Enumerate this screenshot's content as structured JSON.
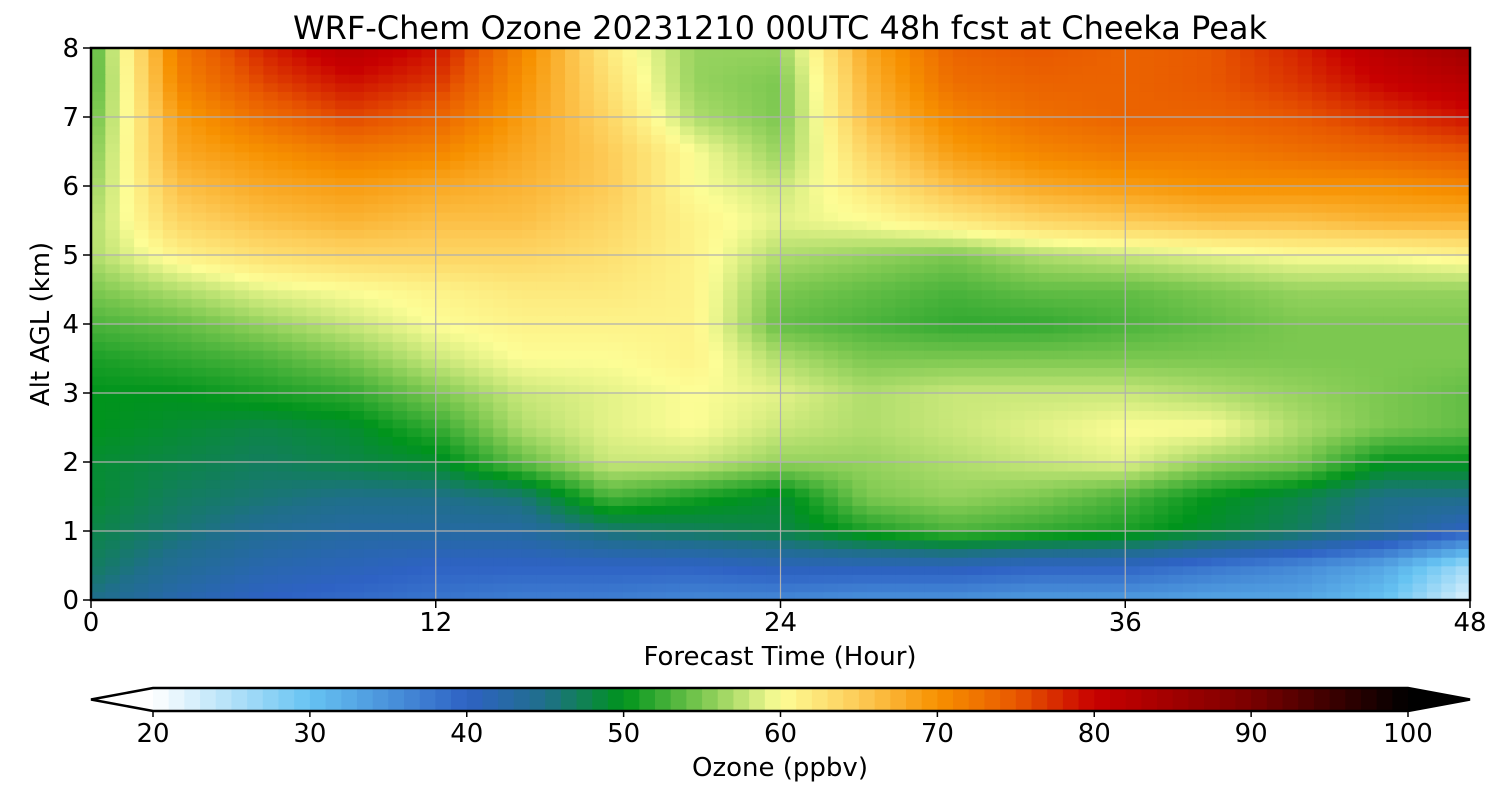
{
  "chart_data": {
    "type": "heatmap",
    "title": "WRF-Chem Ozone  20231210 00UTC 48h fcst at Cheeka Peak",
    "xlabel": "Forecast Time (Hour)",
    "ylabel": "Alt AGL (km)",
    "xlim": [
      0,
      48
    ],
    "ylim": [
      0,
      8
    ],
    "xticks": [
      0,
      12,
      24,
      36,
      48
    ],
    "yticks": [
      0,
      1,
      2,
      3,
      4,
      5,
      6,
      7,
      8
    ],
    "grid": true,
    "colorbar": {
      "label": "Ozone  (ppbv)",
      "min": 20,
      "max": 100,
      "ticks": [
        20,
        30,
        40,
        50,
        60,
        70,
        80,
        90,
        100
      ],
      "extend": "both",
      "orientation": "horizontal",
      "colors": {
        "20": "#ffffff",
        "30": "#66c3f2",
        "40": "#2e62c4",
        "45": "#1f6f8a",
        "50": "#00941c",
        "55": "#7cc850",
        "60": "#fdfd96",
        "65": "#fdcb57",
        "70": "#f79100",
        "75": "#e85800",
        "80": "#c80000",
        "90": "#7a0000",
        "100": "#000000"
      }
    },
    "x": [
      0,
      3,
      6,
      9,
      12,
      15,
      18,
      21,
      24,
      27,
      30,
      33,
      36,
      39,
      42,
      45,
      48
    ],
    "y": [
      0,
      0.5,
      1,
      1.5,
      2,
      2.5,
      3,
      3.5,
      4,
      4.5,
      5,
      5.5,
      6,
      6.5,
      7,
      7.5,
      8
    ],
    "z": [
      [
        45,
        42,
        40,
        39,
        38,
        37,
        37,
        36,
        36,
        35,
        35,
        34,
        34,
        33,
        33,
        30,
        22
      ],
      [
        47,
        44,
        42,
        41,
        40,
        40,
        40,
        40,
        41,
        41,
        41,
        40,
        40,
        38,
        36,
        33,
        26
      ],
      [
        48,
        46,
        44,
        43,
        43,
        43,
        46,
        47,
        48,
        51,
        53,
        52,
        51,
        49,
        47,
        44,
        40
      ],
      [
        49,
        47,
        46,
        45,
        45,
        46,
        53,
        51,
        49,
        55,
        56,
        55,
        53,
        50,
        48,
        45,
        45
      ],
      [
        49,
        48,
        47,
        48,
        49,
        54,
        58,
        58,
        56,
        56,
        57,
        58,
        59,
        56,
        55,
        50,
        50
      ],
      [
        50,
        49,
        48,
        49,
        52,
        57,
        59,
        60,
        58,
        57,
        58,
        59,
        60,
        60,
        57,
        55,
        54
      ],
      [
        50,
        50,
        51,
        52,
        55,
        58,
        59,
        60,
        59,
        57,
        58,
        58,
        58,
        57,
        56,
        55,
        54
      ],
      [
        51,
        52,
        53,
        55,
        58,
        60,
        60,
        61,
        57,
        55,
        55,
        55,
        55,
        55,
        55,
        55,
        55
      ],
      [
        53,
        54,
        56,
        58,
        60,
        61,
        61,
        61,
        54,
        53,
        52,
        52,
        53,
        54,
        55,
        55,
        55
      ],
      [
        55,
        57,
        59,
        60,
        61,
        62,
        62,
        61,
        55,
        54,
        53,
        54,
        54,
        55,
        56,
        56,
        56
      ],
      [
        57,
        61,
        63,
        64,
        64,
        64,
        63,
        61,
        57,
        56,
        55,
        57,
        58,
        59,
        60,
        60,
        61
      ],
      [
        57,
        64,
        66,
        67,
        66,
        66,
        64,
        61,
        59,
        60,
        62,
        64,
        65,
        66,
        66,
        67,
        67
      ],
      [
        56,
        66,
        68,
        69,
        68,
        67,
        65,
        60,
        58,
        62,
        66,
        68,
        69,
        70,
        70,
        70,
        71
      ],
      [
        55,
        68,
        70,
        72,
        71,
        68,
        65,
        60,
        56,
        64,
        69,
        71,
        72,
        72,
        73,
        74,
        75
      ],
      [
        54,
        69,
        73,
        76,
        74,
        69,
        64,
        57,
        55,
        66,
        71,
        73,
        74,
        74,
        75,
        77,
        79
      ],
      [
        53,
        71,
        76,
        79,
        77,
        70,
        63,
        56,
        55,
        67,
        73,
        74,
        74,
        75,
        77,
        80,
        82
      ],
      [
        53,
        72,
        78,
        82,
        79,
        71,
        62,
        56,
        56,
        68,
        74,
        75,
        74,
        75,
        78,
        82,
        85
      ]
    ]
  }
}
